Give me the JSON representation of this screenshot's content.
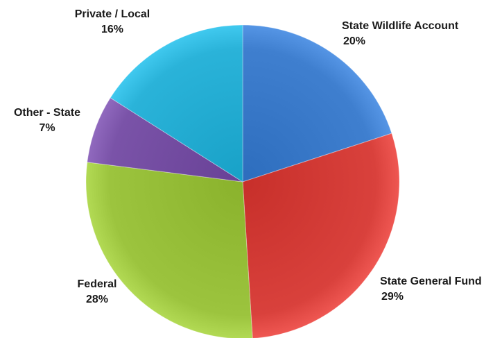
{
  "chart_data": {
    "type": "pie",
    "title": "",
    "slices": [
      {
        "label": "State Wildlife Account",
        "value": 20,
        "value_label": "20%",
        "color": "#3f7fcf"
      },
      {
        "label": "State General Fund",
        "value": 29,
        "value_label": "29%",
        "color": "#d9413c"
      },
      {
        "label": "Federal",
        "value": 28,
        "value_label": "28%",
        "color": "#9cc43e"
      },
      {
        "label": "Other - State",
        "value": 7,
        "value_label": "7%",
        "color": "#7a53a8"
      },
      {
        "label": "Private / Local",
        "value": 16,
        "value_label": "16%",
        "color": "#2ab3d9"
      }
    ],
    "start_angle_deg": 0,
    "direction": "clockwise",
    "legend": "none"
  }
}
